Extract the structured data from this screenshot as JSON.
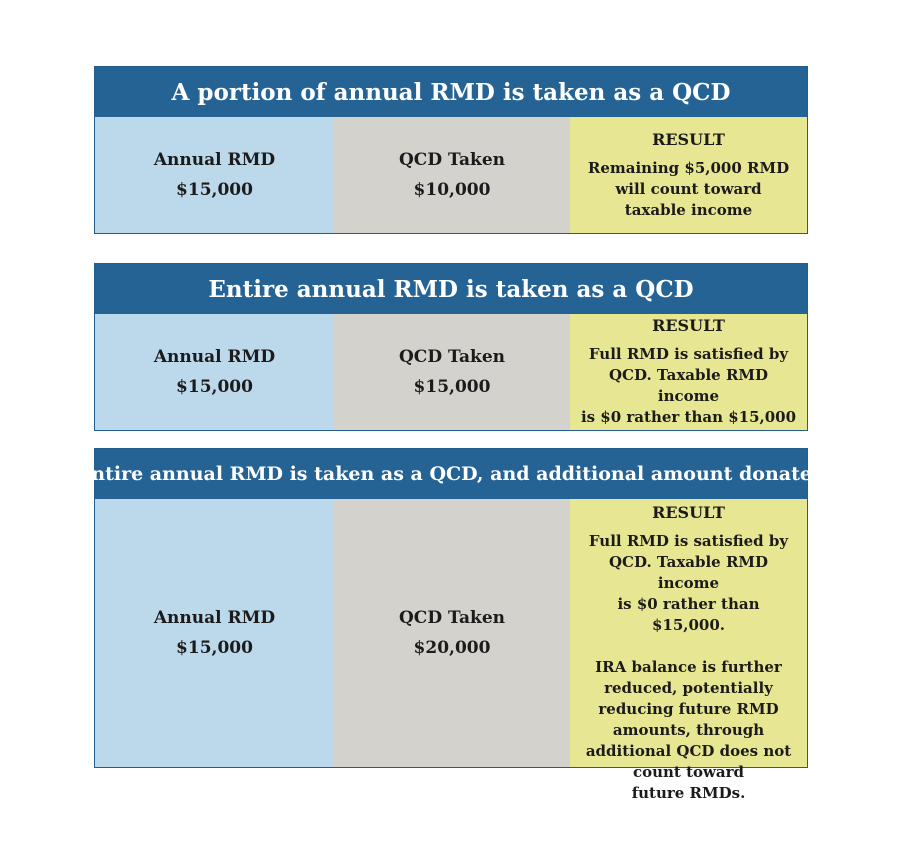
{
  "colors": {
    "banner": "#266395",
    "rmd_cell": "#bcd9ec",
    "qcd_cell": "#d3d2cc",
    "result_cell": "#e7e692"
  },
  "scenarios": [
    {
      "title": "A portion of annual RMD is taken as a QCD",
      "rmd_label": "Annual RMD",
      "rmd_value": "$15,000",
      "qcd_label": "QCD Taken",
      "qcd_value": "$10,000",
      "result_label": "RESULT",
      "result_lines": [
        "Remaining $5,000 RMD",
        "will count toward",
        "taxable income"
      ]
    },
    {
      "title": "Entire annual RMD is taken as a QCD",
      "rmd_label": "Annual RMD",
      "rmd_value": "$15,000",
      "qcd_label": "QCD Taken",
      "qcd_value": "$15,000",
      "result_label": "RESULT",
      "result_lines": [
        "Full RMD is satisfied by",
        "QCD. Taxable RMD income",
        "is $0 rather than $15,000"
      ]
    },
    {
      "title": "Entire annual RMD is taken as a QCD, and additional amount donated",
      "rmd_label": "Annual RMD",
      "rmd_value": "$15,000",
      "qcd_label": "QCD Taken",
      "qcd_value": "$20,000",
      "result_label": "RESULT",
      "result_lines": [
        "Full RMD is satisfied by",
        "QCD. Taxable RMD income",
        "is $0 rather than $15,000."
      ],
      "result_lines_2": [
        "IRA balance is further",
        "reduced, potentially",
        "reducing future RMD",
        "amounts, through",
        "additional QCD does not",
        "count toward",
        "future RMDs."
      ]
    }
  ]
}
